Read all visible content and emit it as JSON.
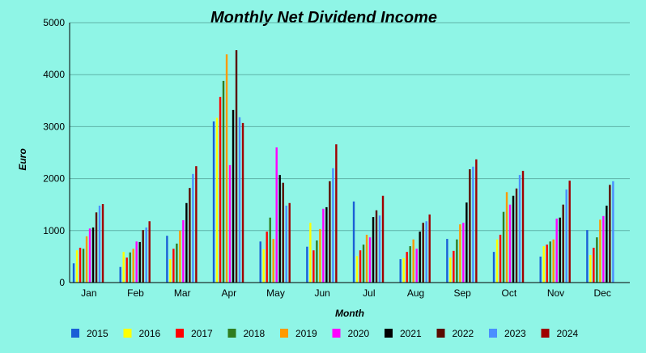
{
  "chart_data": {
    "type": "bar",
    "title": "Monthly Net Dividend Income",
    "xlabel": "Month",
    "ylabel": "Euro",
    "ylim": [
      0,
      5000
    ],
    "yticks": [
      0,
      1000,
      2000,
      3000,
      4000,
      5000
    ],
    "grid": true,
    "legend_placement": "bottom",
    "categories": [
      "Jan",
      "Feb",
      "Mar",
      "Apr",
      "May",
      "Jun",
      "Jul",
      "Aug",
      "Sep",
      "Oct",
      "Nov",
      "Dec"
    ],
    "series": [
      {
        "name": "2015",
        "color": "#1a5fd6",
        "values": [
          370,
          300,
          900,
          3100,
          790,
          690,
          1560,
          450,
          840,
          590,
          500,
          1010
        ]
      },
      {
        "name": "2016",
        "color": "#ffff00",
        "values": [
          620,
          590,
          450,
          3170,
          640,
          1150,
          510,
          470,
          480,
          830,
          700,
          530
        ]
      },
      {
        "name": "2017",
        "color": "#ff0000",
        "values": [
          670,
          480,
          650,
          3570,
          980,
          620,
          620,
          590,
          610,
          920,
          730,
          670
        ]
      },
      {
        "name": "2018",
        "color": "#2f7d1f",
        "values": [
          650,
          580,
          750,
          3880,
          1250,
          810,
          730,
          700,
          830,
          1360,
          790,
          870
        ]
      },
      {
        "name": "2019",
        "color": "#ff9a00",
        "values": [
          890,
          650,
          1000,
          4390,
          840,
          1030,
          920,
          830,
          1120,
          1740,
          830,
          1210
        ]
      },
      {
        "name": "2020",
        "color": "#ff00ff",
        "values": [
          1040,
          790,
          1200,
          2260,
          2600,
          1420,
          870,
          650,
          1150,
          1500,
          1230,
          1280
        ]
      },
      {
        "name": "2021",
        "color": "#000000",
        "values": [
          1060,
          780,
          1530,
          3320,
          2070,
          1450,
          1260,
          980,
          1540,
          1670,
          1250,
          1480
        ]
      },
      {
        "name": "2022",
        "color": "#5a0a00",
        "values": [
          1350,
          1010,
          1820,
          4470,
          1920,
          1950,
          1390,
          1150,
          2180,
          1810,
          1500,
          1880
        ]
      },
      {
        "name": "2023",
        "color": "#4a8fff",
        "values": [
          1480,
          1060,
          2090,
          3180,
          1480,
          2200,
          1290,
          1180,
          2230,
          2070,
          1790,
          1950
        ]
      },
      {
        "name": "2024",
        "color": "#a00000",
        "values": [
          1510,
          1180,
          2240,
          3070,
          1530,
          2660,
          1670,
          1310,
          2370,
          2150,
          1960,
          null
        ]
      }
    ]
  }
}
